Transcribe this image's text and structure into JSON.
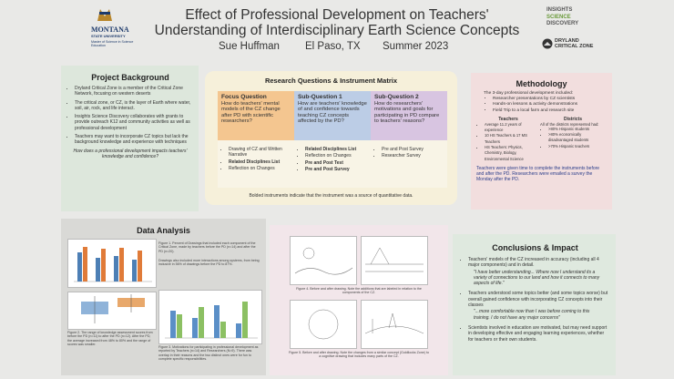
{
  "header": {
    "logo": {
      "name": "MONTANA",
      "sub": "STATE UNIVERSITY",
      "program": "Master of Science in Science Education"
    },
    "title_line1": "Effect of Professional Development on Teachers'",
    "title_line2": "Understanding of Interdisciplinary Earth Science Concepts",
    "author": "Sue Huffman",
    "location": "El Paso, TX",
    "date": "Summer 2023",
    "partner1": [
      "INSIGHTS",
      "SCIENCE",
      "DISCOVERY"
    ],
    "partner2": "DRYLAND CRITICAL ZONE"
  },
  "background": {
    "title": "Project Background",
    "bullets": [
      "Dryland Critical Zone is a member of the Critical Zone Network, focusing on western deserts",
      "The critical zone, or CZ, is the layer of Earth where water, soil, air, rock, and life interact.",
      "Insights Science Discovery collaborates with grants to provide outreach K12 and community activities as well as professional development",
      "Teachers may want to incorporate CZ topics but lack the background knowledge and experience with techniques"
    ],
    "question": "How does a professional development impacts teachers' knowledge and confidence?"
  },
  "research": {
    "title": "Research Questions & Instrument Matrix",
    "columns": [
      {
        "heading": "Focus Question",
        "question": "How do teachers' mental models of the CZ change after PD with scientific researchers?",
        "instruments": [
          {
            "text": "Drawing of CZ and Written Narrative",
            "bold": false
          },
          {
            "text": "Related Disciplines List",
            "bold": true
          },
          {
            "text": "Reflection on Changes",
            "bold": false
          }
        ]
      },
      {
        "heading": "Sub-Question 1",
        "question": "How are teachers' knowledge of and confidence towards teaching CZ concepts affected by the PD?",
        "instruments": [
          {
            "text": "Related Disciplines List",
            "bold": true
          },
          {
            "text": "Reflection on Changes",
            "bold": false
          },
          {
            "text": "Pre and Post Test",
            "bold": true
          },
          {
            "text": "Pre and Post Survey",
            "bold": true
          }
        ]
      },
      {
        "heading": "Sub-Question 2",
        "question": "How do researchers' motivations and goals for participating in PD compare to teachers' reasons?",
        "instruments": [
          {
            "text": "Pre and Post Survey",
            "bold": false
          },
          {
            "text": "Researcher Survey",
            "bold": false
          }
        ]
      }
    ],
    "note": "Bolded instruments indicate that the instrument was a source of quantitative data."
  },
  "methodology": {
    "title": "Methodology",
    "intro": "The 3-day professional development included:",
    "bullets": [
      "Researcher presentations by CZ scientists",
      "Hands-on lessons & activity demonstrations",
      "Field Trip to a local farm and research site"
    ],
    "teachers": {
      "heading": "Teachers",
      "items": [
        "Average 11.2 years of experience",
        "10 HS Teachers & 17 MS Teachers",
        "HS Teachers: Physics, Chemistry, Biology, Environmental Science"
      ]
    },
    "districts": {
      "heading": "Districts",
      "items": [
        "All of the districts represented had:",
        ">80% Hispanic students",
        ">80% economically disadvantaged students",
        ">70% Hispanic teachers"
      ]
    },
    "footer": "Teachers were given time to complete the instruments before and after the PD. Researchers were emailed a survey the Monday after the PD."
  },
  "data_analysis": {
    "title": "Data Analysis",
    "captions": [
      "Figure 1. Percent of Drawings that included each component of the Critical Zone, made by teachers before the PD (n=14) and after the PD (n=20).",
      "Drawings also included more interactions among systems, from being inclusive in 56% of drawings before the PD to 87%.",
      "Figure 2. The range of knowledge assessment scores from before the PD (n=11) to after the PD (n=12). After the PD, the average increased from 48% to 80% and the range of scores was smaller.",
      "Figure 3. Motivations for participating in professional development as reported by Teachers (n=14) and Researchers (N=9). There was overlap in their reasons and the two distinct ones were for fun to complete specific responsibilities."
    ]
  },
  "figures": {
    "captions": [
      "Figure 4. Before and after drawing. Note the additions that are labeled in relation to the components of the CZ.",
      "Figure 5. Before and after drawing. Note the changes from a similar concept (Goldilocks Zone) to a cognitive drawing that includes many parts of the CZ."
    ]
  },
  "conclusions": {
    "title": "Conclusions & Impact",
    "items": [
      {
        "text": "Teachers' models of the CZ increased in accuracy (including all 4 major components) and in detail.",
        "quote": "\"I have better understanding... Where now I understand its a variety of connections to our land and how it connects to many aspects of life.\""
      },
      {
        "text": "Teachers understood some topics better (and some topics worse) but overall gained confidence with incorporating CZ concepts into their classes",
        "quote": "\"...more comfortable now than I was before coming to this training. I do not have any major concerns\""
      },
      {
        "text": "Scientists involved in education are motivated, but may need support in developing effective and engaging learning experiences, whether for teachers or their own students.",
        "quote": null
      }
    ]
  }
}
